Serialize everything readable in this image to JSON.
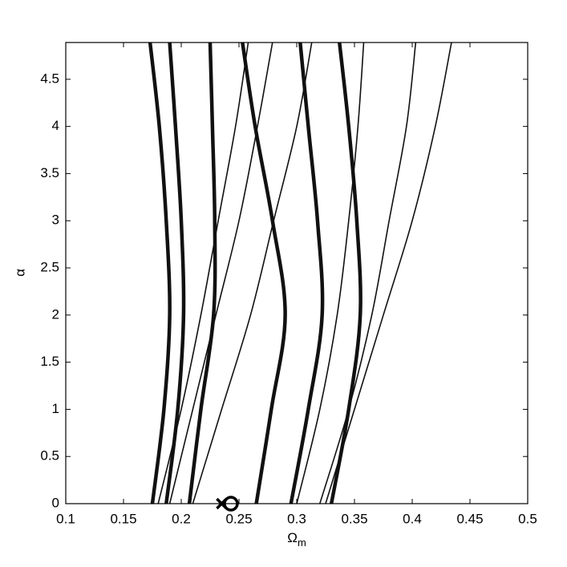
{
  "chart_data": {
    "type": "line",
    "xlabel": "Ω",
    "xlabel_subscript": "m",
    "ylabel": "α",
    "xlim": [
      0.1,
      0.5
    ],
    "ylim": [
      0,
      4.89
    ],
    "xticks": [
      0.1,
      0.15,
      0.2,
      0.25,
      0.3,
      0.35,
      0.4,
      0.45,
      0.5
    ],
    "yticks": [
      0,
      0.5,
      1,
      1.5,
      2,
      2.5,
      3,
      3.5,
      4,
      4.5
    ],
    "series": [
      {
        "color": "#111111",
        "style": "thick",
        "x": [
          0.175,
          0.185,
          0.19,
          0.187,
          0.181,
          0.173
        ],
        "values": [
          0,
          1,
          2,
          3,
          4,
          4.89
        ]
      },
      {
        "color": "#111111",
        "style": "thick",
        "x": [
          0.187,
          0.197,
          0.202,
          0.2,
          0.195,
          0.19
        ],
        "values": [
          0,
          1,
          2,
          3,
          4,
          4.89
        ]
      },
      {
        "color": "#111111",
        "style": "thick",
        "x": [
          0.207,
          0.217,
          0.228,
          0.229,
          0.227,
          0.225
        ],
        "values": [
          0,
          1,
          2,
          3,
          4,
          4.89
        ]
      },
      {
        "color": "#111111",
        "style": "thick",
        "x": [
          0.265,
          0.278,
          0.29,
          0.279,
          0.264,
          0.253
        ],
        "values": [
          0,
          1,
          2,
          3,
          4,
          4.89
        ]
      },
      {
        "color": "#111111",
        "style": "thick",
        "x": [
          0.295,
          0.31,
          0.322,
          0.318,
          0.31,
          0.303
        ],
        "values": [
          0,
          1,
          2,
          3,
          4,
          4.89
        ]
      },
      {
        "color": "#111111",
        "style": "thick",
        "x": [
          0.33,
          0.345,
          0.355,
          0.352,
          0.345,
          0.337
        ],
        "values": [
          0,
          1,
          2,
          3,
          4,
          4.89
        ]
      },
      {
        "color": "#111111",
        "style": "thin",
        "x": [
          0.18,
          0.2,
          0.217,
          0.232,
          0.247,
          0.258
        ],
        "values": [
          0,
          1,
          2,
          3,
          4,
          4.89
        ]
      },
      {
        "color": "#111111",
        "style": "thin",
        "x": [
          0.19,
          0.21,
          0.23,
          0.25,
          0.266,
          0.279
        ],
        "values": [
          0,
          1,
          2,
          3,
          4,
          4.89
        ]
      },
      {
        "color": "#111111",
        "style": "thin",
        "x": [
          0.21,
          0.235,
          0.26,
          0.28,
          0.3,
          0.313
        ],
        "values": [
          0,
          1,
          2,
          3,
          4,
          4.89
        ]
      },
      {
        "color": "#111111",
        "style": "thin",
        "x": [
          0.3,
          0.32,
          0.335,
          0.345,
          0.353,
          0.358
        ],
        "values": [
          0,
          1,
          2,
          3,
          4,
          4.89
        ]
      },
      {
        "color": "#111111",
        "style": "thin",
        "x": [
          0.32,
          0.345,
          0.365,
          0.38,
          0.395,
          0.403
        ],
        "values": [
          0,
          1,
          2,
          3,
          4,
          4.89
        ]
      },
      {
        "color": "#111111",
        "style": "thin",
        "x": [
          0.325,
          0.35,
          0.375,
          0.4,
          0.42,
          0.434
        ],
        "values": [
          0,
          1,
          2,
          3,
          4,
          4.89
        ]
      }
    ],
    "markers": [
      {
        "symbol": "x",
        "x": 0.235,
        "y": 0
      },
      {
        "symbol": "o",
        "x": 0.243,
        "y": 0
      }
    ]
  }
}
